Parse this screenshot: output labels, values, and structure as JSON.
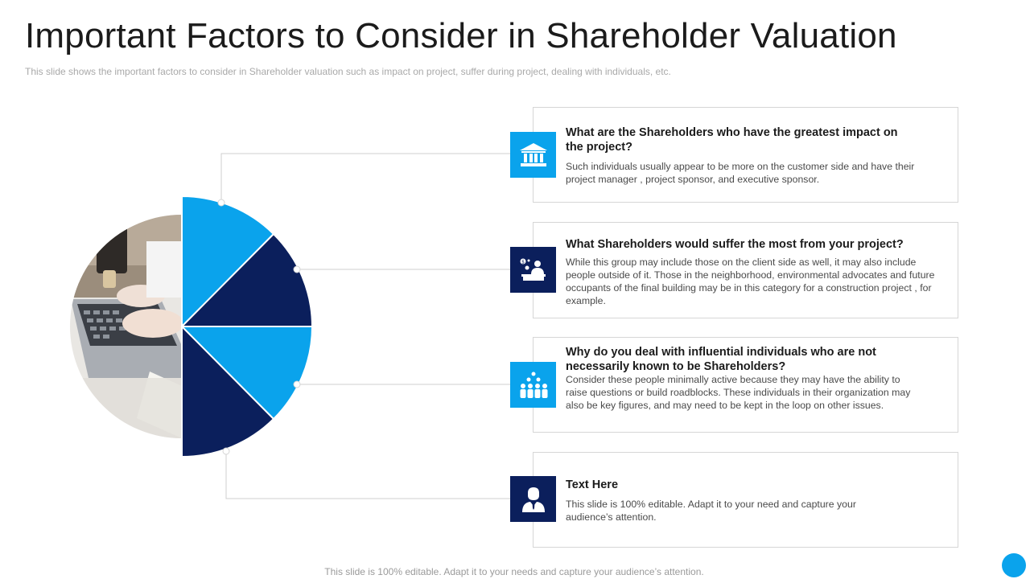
{
  "slide": {
    "title": "Important Factors to Consider in Shareholder Valuation",
    "subtitle": "This slide shows the important factors to consider in Shareholder valuation  such as impact on project, suffer during project, dealing with individuals,  etc.",
    "footer": "This slide is 100% editable. Adapt it to your needs and capture your audience’s attention."
  },
  "colors": {
    "accent_light": "#0aa3ec",
    "accent_dark": "#0b1f5c",
    "connector": "#cfcfcf"
  },
  "cards": [
    {
      "title": "What are the Shareholders who have the greatest impact on the project?",
      "body": "Such individuals usually appear to be more on the customer side and have their project manager , project sponsor, and executive sponsor.",
      "icon": "bank-icon",
      "icon_color": "accent_light"
    },
    {
      "title": "What Shareholders would suffer the most from your project?",
      "body": "While this group may include those on the client side as well, it may also include people outside of it. Those in the neighborhood, environmental advocates and future occupants of the final building may be in this category for a construction project , for example.",
      "icon": "business-meeting-icon",
      "icon_color": "accent_dark"
    },
    {
      "title": "Why do you deal with influential individuals who are not necessarily known to be Shareholders?",
      "body": "Consider these people minimally active because they may have the ability to raise questions or build roadblocks. These individuals in their organization may also be key figures, and may need to be kept in the loop on other issues.",
      "icon": "people-group-icon",
      "icon_color": "accent_light"
    },
    {
      "title": "Text Here",
      "body": "This slide is 100% editable. Adapt it to your need and capture your audience’s attention.",
      "icon": "businessman-icon",
      "icon_color": "accent_dark"
    }
  ]
}
